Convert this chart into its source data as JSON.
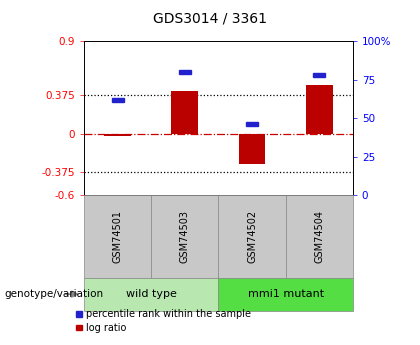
{
  "title": "GDS3014 / 3361",
  "samples": [
    "GSM74501",
    "GSM74503",
    "GSM74502",
    "GSM74504"
  ],
  "log_ratios": [
    -0.02,
    0.42,
    -0.3,
    0.47
  ],
  "percentile_ranks": [
    62,
    80,
    46,
    78
  ],
  "groups": [
    "wild type",
    "wild type",
    "mmi1 mutant",
    "mmi1 mutant"
  ],
  "ylim_left": [
    -0.6,
    0.9
  ],
  "ylim_right": [
    0,
    100
  ],
  "left_ticks": [
    -0.6,
    -0.375,
    0,
    0.375,
    0.9
  ],
  "right_ticks": [
    0,
    25,
    50,
    75,
    100
  ],
  "hline_dotted": [
    0.375,
    -0.375
  ],
  "hline_dashdot": 0.0,
  "bar_color": "#bb0000",
  "percentile_color": "#2222cc",
  "bar_width": 0.4,
  "group_label": "genotype/variation",
  "legend_items": [
    "log ratio",
    "percentile rank within the sample"
  ],
  "legend_colors": [
    "#bb0000",
    "#2222cc"
  ],
  "background_color": "#ffffff",
  "plot_bg": "#ffffff",
  "sample_box_color": "#c8c8c8",
  "group_fill_colors": [
    "#b8e8b0",
    "#55dd44"
  ],
  "group_box_edge": "#888888"
}
